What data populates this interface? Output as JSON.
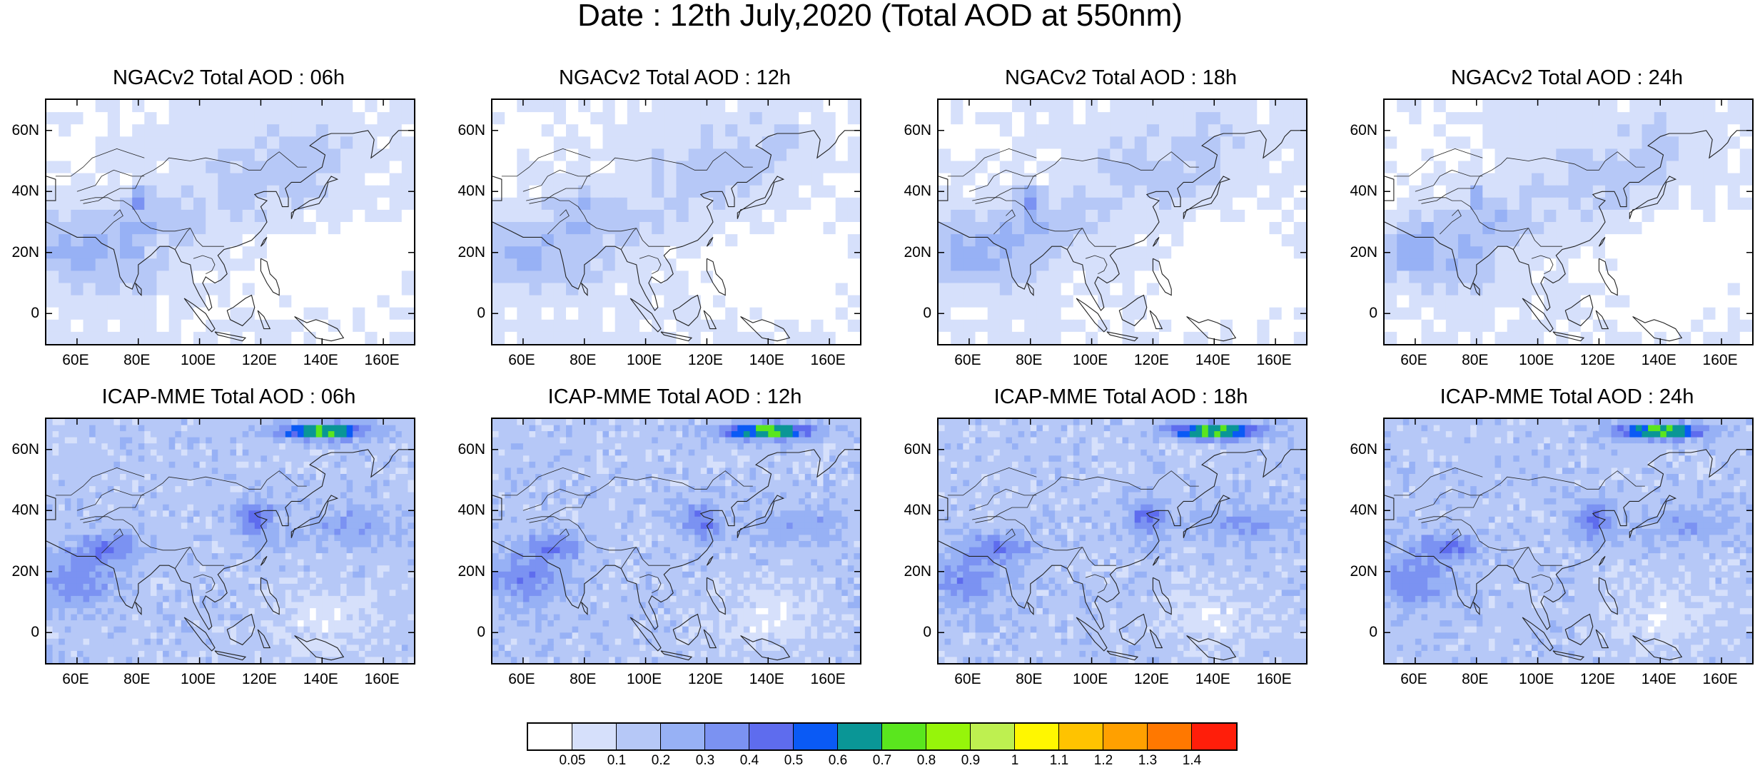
{
  "title": "Date : 12th July,2020 (Total AOD at 550nm)",
  "panels": [
    {
      "title": "NGACv2 Total AOD : 06h",
      "model": "ngac",
      "seed": 11
    },
    {
      "title": "NGACv2 Total AOD : 12h",
      "model": "ngac",
      "seed": 23
    },
    {
      "title": "NGACv2 Total AOD : 18h",
      "model": "ngac",
      "seed": 37
    },
    {
      "title": "NGACv2 Total AOD : 24h",
      "model": "ngac",
      "seed": 41
    },
    {
      "title": "ICAP-MME Total AOD : 06h",
      "model": "icap",
      "seed": 53
    },
    {
      "title": "ICAP-MME Total AOD : 12h",
      "model": "icap",
      "seed": 67
    },
    {
      "title": "ICAP-MME Total AOD : 18h",
      "model": "icap",
      "seed": 71
    },
    {
      "title": "ICAP-MME Total AOD : 24h",
      "model": "icap",
      "seed": 89
    }
  ],
  "axes": {
    "lon_range": [
      50,
      170
    ],
    "lat_range": [
      -10,
      70
    ],
    "lon_ticks": [
      60,
      80,
      100,
      120,
      140,
      160
    ],
    "lon_tick_labels": [
      "60E",
      "80E",
      "100E",
      "120E",
      "140E",
      "160E"
    ],
    "lat_ticks": [
      60,
      40,
      20,
      0
    ],
    "lat_tick_labels": [
      "60N",
      "40N",
      "20N",
      "0"
    ]
  },
  "colorbar": {
    "colors": [
      "#ffffff",
      "#d6e0fb",
      "#b6c8f7",
      "#97b1f5",
      "#7b92f2",
      "#5e6cee",
      "#0a5af5",
      "#0a9696",
      "#5ae61e",
      "#96f50a",
      "#bef050",
      "#fff700",
      "#ffc300",
      "#ffa000",
      "#ff7800",
      "#ff1e0a"
    ],
    "labels": [
      "0.05",
      "0.1",
      "0.2",
      "0.3",
      "0.4",
      "0.5",
      "0.6",
      "0.7",
      "0.8",
      "0.9",
      "1",
      "1.1",
      "1.2",
      "1.3",
      "1.4"
    ]
  }
}
